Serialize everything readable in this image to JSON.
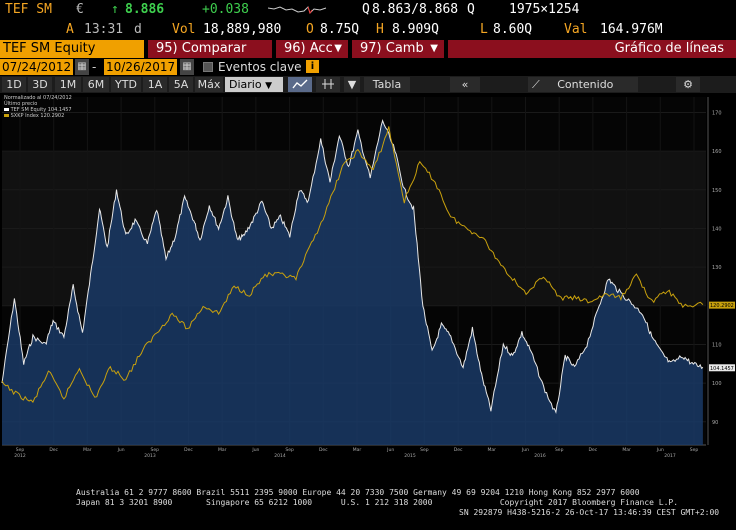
{
  "quote": {
    "ticker": "TEF SM",
    "currency_symbol": "€",
    "arrow": "↑",
    "last_price": "8.886",
    "change": "+0.038",
    "bid_ask_prefix": "Q",
    "bid_ask": "8.863/8.868",
    "bid_ask_suffix": "Q",
    "size": "1975×1254",
    "price_source": "A",
    "time": "13:31",
    "time_suffix": "d",
    "volume_label": "Vol",
    "volume": "18,889,980",
    "open_label": "O",
    "open": "8.75Q",
    "high_label": "H",
    "high": "8.909Q",
    "low_label": "L",
    "low": "8.60Q",
    "value_label": "Val",
    "value": "164.976M"
  },
  "tabs": {
    "security": "TEF SM Equity",
    "compare_num": "95)",
    "compare": "Comparar",
    "actions_num": "96)",
    "actions": "Acc",
    "change_num": "97)",
    "change": "Camb",
    "chart_title": "Gráfico de líneas"
  },
  "dates": {
    "start": "07/24/2012",
    "end": "10/26/2017",
    "events": "Eventos clave"
  },
  "toolbar": {
    "periods": [
      "1D",
      "3D",
      "1M",
      "6M",
      "YTD",
      "1A",
      "5A",
      "Máx"
    ],
    "frequency": "Diario",
    "table": "Tabla",
    "content": "Contenido"
  },
  "legend": {
    "line1": "Normalizado al 07/24/2012",
    "line2": "Último precio",
    "line3": "TEF SM Equity  104.1457",
    "line4": "SXKP Index  120.2902"
  },
  "chart_data": {
    "type": "line",
    "y_ticks": [
      90,
      100,
      110,
      120,
      130,
      140,
      150,
      160,
      170
    ],
    "ylim": [
      84,
      174
    ],
    "x_year_labels": [
      "2012",
      "2013",
      "2014",
      "2015",
      "2016",
      "2017"
    ],
    "x_month_labels": [
      "Sep",
      "Dec",
      "Mar",
      "Jun",
      "Sep",
      "Dec",
      "Mar",
      "Jun",
      "Sep",
      "Dec",
      "Mar",
      "Jun",
      "Sep",
      "Dec",
      "Mar",
      "Jun",
      "Sep",
      "Dec",
      "Mar",
      "Jun",
      "Sep"
    ],
    "last_values": {
      "TEF SM Equity": "104.1457",
      "SXKP Index": "120.2902"
    },
    "series": [
      {
        "name": "TEF SM Equity",
        "color": "#e8e8e8",
        "fill": "#1a3a66",
        "points": [
          [
            0,
            100
          ],
          [
            0.08,
            122
          ],
          [
            0.14,
            105
          ],
          [
            0.2,
            112
          ],
          [
            0.28,
            110
          ],
          [
            0.33,
            116
          ],
          [
            0.4,
            112
          ],
          [
            0.46,
            125
          ],
          [
            0.52,
            113
          ],
          [
            0.58,
            130
          ],
          [
            0.63,
            145
          ],
          [
            0.68,
            135
          ],
          [
            0.74,
            150
          ],
          [
            0.8,
            138
          ],
          [
            0.86,
            142
          ],
          [
            0.94,
            136
          ],
          [
            1.0,
            145
          ],
          [
            1.06,
            132
          ],
          [
            1.12,
            138
          ],
          [
            1.18,
            148
          ],
          [
            1.24,
            142
          ],
          [
            1.28,
            137
          ],
          [
            1.34,
            146
          ],
          [
            1.4,
            140
          ],
          [
            1.46,
            148
          ],
          [
            1.52,
            137
          ],
          [
            1.56,
            138
          ],
          [
            1.62,
            142
          ],
          [
            1.68,
            147
          ],
          [
            1.74,
            140
          ],
          [
            1.8,
            143
          ],
          [
            1.86,
            138
          ],
          [
            1.92,
            150
          ],
          [
            1.98,
            147
          ],
          [
            2.06,
            163
          ],
          [
            2.12,
            152
          ],
          [
            2.18,
            164
          ],
          [
            2.24,
            156
          ],
          [
            2.3,
            165
          ],
          [
            2.38,
            153
          ],
          [
            2.46,
            168
          ],
          [
            2.54,
            160
          ],
          [
            2.6,
            150
          ],
          [
            2.66,
            145
          ],
          [
            2.72,
            120
          ],
          [
            2.78,
            108
          ],
          [
            2.84,
            115
          ],
          [
            2.9,
            112
          ],
          [
            2.98,
            104
          ],
          [
            3.04,
            114
          ],
          [
            3.1,
            102
          ],
          [
            3.16,
            93
          ],
          [
            3.24,
            110
          ],
          [
            3.3,
            107
          ],
          [
            3.36,
            113
          ],
          [
            3.42,
            108
          ],
          [
            3.5,
            99
          ],
          [
            3.58,
            92
          ],
          [
            3.64,
            107
          ],
          [
            3.7,
            104
          ],
          [
            3.78,
            110
          ],
          [
            3.86,
            120
          ],
          [
            3.92,
            127
          ],
          [
            3.98,
            124
          ],
          [
            4.06,
            121
          ],
          [
            4.14,
            118
          ],
          [
            4.2,
            112
          ],
          [
            4.26,
            108
          ],
          [
            4.32,
            105
          ],
          [
            4.4,
            107
          ],
          [
            4.46,
            105
          ],
          [
            4.53,
            104.1
          ]
        ]
      },
      {
        "name": "SXKP Index",
        "color": "#c9a10d",
        "points": [
          [
            0,
            100
          ],
          [
            0.1,
            97
          ],
          [
            0.2,
            95
          ],
          [
            0.3,
            103
          ],
          [
            0.4,
            96
          ],
          [
            0.5,
            104
          ],
          [
            0.6,
            96
          ],
          [
            0.7,
            104
          ],
          [
            0.8,
            101
          ],
          [
            0.9,
            108
          ],
          [
            1.0,
            113
          ],
          [
            1.1,
            118
          ],
          [
            1.2,
            114
          ],
          [
            1.3,
            120
          ],
          [
            1.4,
            118
          ],
          [
            1.5,
            125
          ],
          [
            1.6,
            123
          ],
          [
            1.7,
            128
          ],
          [
            1.8,
            128
          ],
          [
            1.9,
            127
          ],
          [
            2.0,
            136
          ],
          [
            2.1,
            145
          ],
          [
            2.2,
            156
          ],
          [
            2.3,
            160
          ],
          [
            2.4,
            155
          ],
          [
            2.5,
            166
          ],
          [
            2.6,
            147
          ],
          [
            2.7,
            157
          ],
          [
            2.8,
            152
          ],
          [
            2.9,
            143
          ],
          [
            3.0,
            140
          ],
          [
            3.1,
            138
          ],
          [
            3.2,
            132
          ],
          [
            3.3,
            127
          ],
          [
            3.4,
            123
          ],
          [
            3.5,
            128
          ],
          [
            3.6,
            122
          ],
          [
            3.7,
            122
          ],
          [
            3.8,
            121
          ],
          [
            3.9,
            123
          ],
          [
            4.0,
            122
          ],
          [
            4.1,
            128
          ],
          [
            4.2,
            121
          ],
          [
            4.3,
            124
          ],
          [
            4.4,
            120
          ],
          [
            4.53,
            120.3
          ]
        ]
      }
    ]
  },
  "footer": {
    "line1": "Australia 61 2 9777 8600 Brazil 5511 2395 9000 Europe 44 20 7330 7500 Germany 49 69 9204 1210 Hong Kong 852 2977 6000",
    "line2": "Japan 81 3 3201 8900       Singapore 65 6212 1000      U.S. 1 212 318 2000              Copyright 2017 Bloomberg Finance L.P.",
    "line3": "SN 292879 H438-5216-2 26-Oct-17 13:46:39 CEST GMT+2:00"
  }
}
